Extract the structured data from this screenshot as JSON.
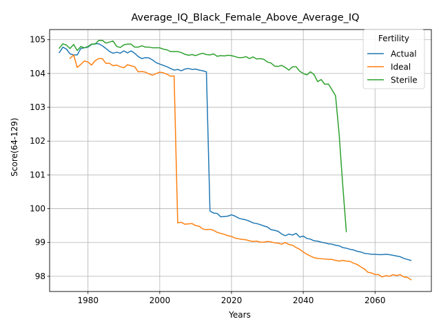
{
  "chart_data": {
    "type": "line",
    "title": "Average_IQ_Black_Female_Above_Average_IQ",
    "xlabel": "Years",
    "ylabel": "Score(64-129)",
    "xlim": [
      1969.3,
      2075.7
    ],
    "ylim": [
      97.55,
      105.3
    ],
    "x_ticks": [
      1980,
      2000,
      2020,
      2040,
      2060
    ],
    "y_ticks": [
      98,
      99,
      100,
      101,
      102,
      103,
      104,
      105
    ],
    "grid": true,
    "legend": {
      "title": "Fertility",
      "placement": "top-right"
    },
    "colors": {
      "Actual": "#1f77b4",
      "Ideal": "#ff7f0e",
      "Sterile": "#2ca02c"
    },
    "series": [
      {
        "name": "Actual",
        "x": [
          1972,
          1973,
          1974,
          1975,
          1976,
          1977,
          1978,
          1979,
          1980,
          1981,
          1982,
          1983,
          1984,
          1985,
          1986,
          1987,
          1988,
          1989,
          1990,
          1991,
          1992,
          1993,
          1994,
          1995,
          1996,
          1997,
          1998,
          1999,
          2000,
          2001,
          2002,
          2003,
          2004,
          2005,
          2006,
          2007,
          2008,
          2009,
          2010,
          2011,
          2012,
          2013,
          2014,
          2015,
          2016,
          2017,
          2018,
          2019,
          2020,
          2021,
          2022,
          2023,
          2024,
          2025,
          2026,
          2027,
          2028,
          2029,
          2030,
          2031,
          2032,
          2033,
          2034,
          2035,
          2036,
          2037,
          2038,
          2039,
          2040,
          2041,
          2042,
          2043,
          2044,
          2045,
          2046,
          2047,
          2048,
          2049,
          2050,
          2051,
          2052,
          2053,
          2054,
          2055,
          2056,
          2057,
          2058,
          2059,
          2060,
          2061,
          2062,
          2063,
          2064,
          2065,
          2066,
          2067,
          2068,
          2069,
          2070
        ],
        "values": [
          104.62,
          104.78,
          104.72,
          104.58,
          104.55,
          104.55,
          104.74,
          104.76,
          104.78,
          104.86,
          104.88,
          104.88,
          104.82,
          104.74,
          104.65,
          104.6,
          104.63,
          104.6,
          104.67,
          104.61,
          104.67,
          104.6,
          104.5,
          104.44,
          104.47,
          104.46,
          104.4,
          104.32,
          104.28,
          104.24,
          104.2,
          104.15,
          104.1,
          104.12,
          104.08,
          104.13,
          104.15,
          104.12,
          104.13,
          104.1,
          104.08,
          104.05,
          99.93,
          99.87,
          99.86,
          99.76,
          99.77,
          99.78,
          99.82,
          99.78,
          99.72,
          99.69,
          99.67,
          99.63,
          99.58,
          99.56,
          99.53,
          99.49,
          99.46,
          99.38,
          99.36,
          99.33,
          99.25,
          99.2,
          99.25,
          99.22,
          99.27,
          99.16,
          99.19,
          99.12,
          99.1,
          99.05,
          99.04,
          99.01,
          98.99,
          98.96,
          98.95,
          98.92,
          98.9,
          98.85,
          98.83,
          98.8,
          98.78,
          98.74,
          98.72,
          98.68,
          98.67,
          98.65,
          98.65,
          98.64,
          98.64,
          98.65,
          98.64,
          98.62,
          98.6,
          98.58,
          98.53,
          98.5,
          98.47
        ]
      },
      {
        "name": "Ideal",
        "x": [
          1975,
          1976,
          1977,
          1978,
          1979,
          1980,
          1981,
          1982,
          1983,
          1984,
          1985,
          1986,
          1987,
          1988,
          1989,
          1990,
          1991,
          1992,
          1993,
          1994,
          1995,
          1996,
          1997,
          1998,
          1999,
          2000,
          2001,
          2002,
          2003,
          2004,
          2005,
          2006,
          2007,
          2008,
          2009,
          2010,
          2011,
          2012,
          2013,
          2014,
          2015,
          2016,
          2017,
          2018,
          2019,
          2020,
          2021,
          2022,
          2023,
          2024,
          2025,
          2026,
          2027,
          2028,
          2029,
          2030,
          2031,
          2032,
          2033,
          2034,
          2035,
          2036,
          2037,
          2038,
          2039,
          2040,
          2041,
          2042,
          2043,
          2044,
          2045,
          2046,
          2047,
          2048,
          2049,
          2050,
          2051,
          2052,
          2053,
          2054,
          2055,
          2056,
          2057,
          2058,
          2059,
          2060,
          2061,
          2062,
          2063,
          2064,
          2065,
          2066,
          2067,
          2068,
          2069,
          2070
        ],
        "values": [
          104.45,
          104.55,
          104.18,
          104.27,
          104.37,
          104.34,
          104.25,
          104.38,
          104.44,
          104.44,
          104.3,
          104.3,
          104.23,
          104.25,
          104.2,
          104.17,
          104.26,
          104.23,
          104.2,
          104.05,
          104.06,
          104.04,
          103.99,
          103.95,
          104.0,
          104.04,
          104.02,
          103.98,
          103.92,
          103.93,
          99.58,
          99.6,
          99.54,
          99.55,
          99.56,
          99.5,
          99.48,
          99.4,
          99.38,
          99.39,
          99.36,
          99.3,
          99.27,
          99.24,
          99.2,
          99.18,
          99.13,
          99.11,
          99.09,
          99.08,
          99.05,
          99.03,
          99.04,
          99.01,
          99.01,
          99.03,
          99.02,
          98.99,
          98.98,
          98.95,
          99.0,
          98.94,
          98.92,
          98.85,
          98.8,
          98.72,
          98.65,
          98.6,
          98.55,
          98.53,
          98.52,
          98.51,
          98.5,
          98.5,
          98.47,
          98.45,
          98.47,
          98.45,
          98.44,
          98.39,
          98.35,
          98.28,
          98.22,
          98.12,
          98.1,
          98.05,
          98.05,
          97.98,
          98.02,
          98.0,
          98.05,
          98.02,
          98.05,
          97.98,
          97.97,
          97.9
        ]
      },
      {
        "name": "Sterile",
        "x": [
          1972,
          1973,
          1974,
          1975,
          1976,
          1977,
          1978,
          1979,
          1980,
          1981,
          1982,
          1983,
          1984,
          1985,
          1986,
          1987,
          1988,
          1989,
          1990,
          1991,
          1992,
          1993,
          1994,
          1995,
          1996,
          1997,
          1998,
          1999,
          2000,
          2001,
          2002,
          2003,
          2004,
          2005,
          2006,
          2007,
          2008,
          2009,
          2010,
          2011,
          2012,
          2013,
          2014,
          2015,
          2016,
          2017,
          2018,
          2019,
          2020,
          2021,
          2022,
          2023,
          2024,
          2025,
          2026,
          2027,
          2028,
          2029,
          2030,
          2031,
          2032,
          2033,
          2034,
          2035,
          2036,
          2037,
          2038,
          2039,
          2040,
          2041,
          2042,
          2043,
          2044,
          2045,
          2046,
          2047,
          2048,
          2049,
          2050,
          2051,
          2052
        ],
        "values": [
          104.75,
          104.88,
          104.84,
          104.74,
          104.86,
          104.68,
          104.8,
          104.76,
          104.8,
          104.87,
          104.87,
          104.98,
          104.98,
          104.9,
          104.93,
          104.96,
          104.8,
          104.77,
          104.85,
          104.87,
          104.87,
          104.78,
          104.78,
          104.82,
          104.78,
          104.78,
          104.76,
          104.76,
          104.76,
          104.72,
          104.7,
          104.65,
          104.65,
          104.65,
          104.62,
          104.57,
          104.54,
          104.56,
          104.53,
          104.57,
          104.6,
          104.56,
          104.55,
          104.58,
          104.51,
          104.53,
          104.52,
          104.54,
          104.53,
          104.5,
          104.47,
          104.47,
          104.5,
          104.44,
          104.49,
          104.43,
          104.44,
          104.42,
          104.34,
          104.31,
          104.22,
          104.21,
          104.24,
          104.18,
          104.1,
          104.2,
          104.2,
          104.07,
          104.0,
          103.96,
          104.05,
          103.97,
          103.76,
          103.82,
          103.68,
          103.69,
          103.52,
          103.34,
          102.2,
          100.7,
          99.32
        ]
      }
    ]
  }
}
